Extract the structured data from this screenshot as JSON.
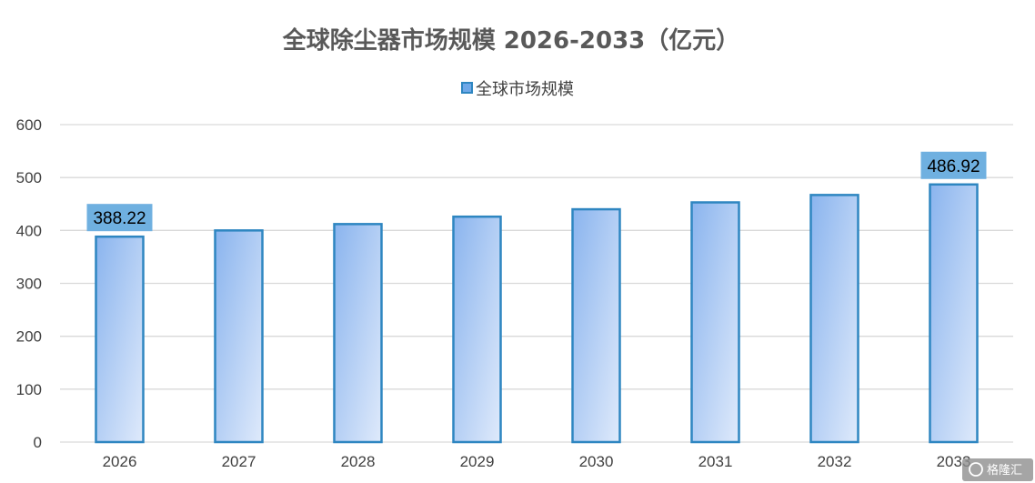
{
  "chart_data": {
    "type": "bar",
    "title": "全球除尘器市场规模 2026-2033（亿元）",
    "categories": [
      "2026",
      "2027",
      "2028",
      "2029",
      "2030",
      "2031",
      "2032",
      "2033"
    ],
    "series": [
      {
        "name": "全球市场规模",
        "values": [
          388.22,
          400,
          412,
          426,
          440,
          453,
          467,
          486.92
        ]
      }
    ],
    "data_labels": [
      "388.22",
      "",
      "",
      "",
      "",
      "",
      "",
      "486.92"
    ],
    "y_ticks": [
      "0",
      "100",
      "200",
      "300",
      "400",
      "500",
      "600"
    ],
    "ylim": [
      0,
      600
    ],
    "grid": true,
    "legend_position": "top-center",
    "colors": {
      "bar_fill_start": "#8ab4ee",
      "bar_fill_end": "#dfeafb",
      "bar_stroke": "#2e86c1",
      "label_bg": "#6fb0e0",
      "grid": "#d9d9d9"
    }
  },
  "watermark": {
    "text": "格隆汇"
  }
}
